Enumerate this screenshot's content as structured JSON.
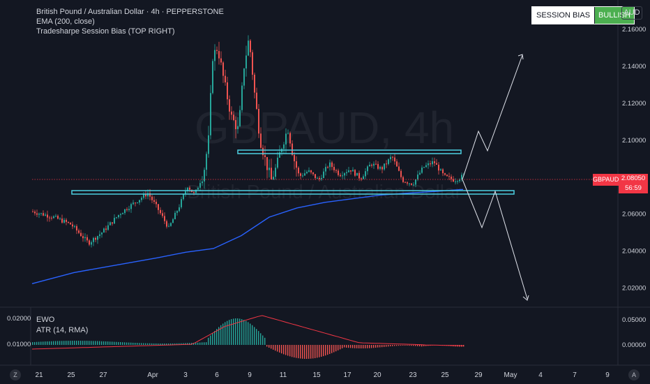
{
  "header": {
    "title": "British Pound / Australian Dollar · 4h · PEPPERSTONE",
    "ema": "EMA (200, close)",
    "bias_indicator": "Tradesharpe Session Bias (TOP RIGHT)"
  },
  "watermark": {
    "symbol": "GBPAUD, 4h",
    "name": "British Pound / Australian Dollar"
  },
  "session_bias": {
    "label": "SESSION BIAS",
    "value": "BULLISH",
    "value_color": "#4caf50"
  },
  "currency_button": "AUD",
  "price_axis": {
    "ticks": [
      "2.16000",
      "2.14000",
      "2.12000",
      "2.10000",
      "2.08000",
      "2.06000",
      "2.04000",
      "2.02000"
    ],
    "symbol_tag": "GBPAUD",
    "last_price": "2.08050",
    "countdown": "56:59"
  },
  "indicator_pane": {
    "names": [
      "EWO",
      "ATR (14, RMA)"
    ],
    "left_ticks": [
      "0.02000",
      "0.01000"
    ],
    "right_ticks": [
      "0.05000",
      "0.00000"
    ]
  },
  "time_axis": {
    "labels": [
      "21",
      "25",
      "27",
      "Apr",
      "3",
      "6",
      "9",
      "11",
      "15",
      "17",
      "20",
      "23",
      "25",
      "29",
      "May",
      "4",
      "7",
      "9"
    ]
  },
  "corners": {
    "left": "Z",
    "right": "A"
  },
  "colors": {
    "background": "#131722",
    "up_candle": "#26a69a",
    "down_candle": "#ef5350",
    "ema": "#2962ff",
    "zones": "#4dd0e1",
    "atr": "#f23645"
  },
  "chart_data": {
    "type": "candlestick",
    "symbol": "GBPAUD",
    "timeframe": "4h",
    "ylim": [
      2.01,
      2.168
    ],
    "last_price": 2.0805,
    "resistance_zone": 2.0965,
    "support_zone": 2.0735,
    "projection_up_targets": [
      2.107,
      2.152
    ],
    "projection_down_targets": [
      2.062,
      2.012
    ],
    "ema200": [
      [
        0,
        2.022
      ],
      [
        60,
        2.028
      ],
      [
        120,
        2.032
      ],
      [
        180,
        2.036
      ],
      [
        220,
        2.039
      ],
      [
        260,
        2.041
      ],
      [
        300,
        2.048
      ],
      [
        340,
        2.058
      ],
      [
        380,
        2.063
      ],
      [
        420,
        2.066
      ],
      [
        460,
        2.068
      ],
      [
        500,
        2.07
      ],
      [
        540,
        2.071
      ],
      [
        580,
        2.072
      ],
      [
        618,
        2.073
      ]
    ],
    "candles_close_path": [
      [
        0,
        2.061
      ],
      [
        30,
        2.058
      ],
      [
        55,
        2.054
      ],
      [
        80,
        2.044
      ],
      [
        100,
        2.05
      ],
      [
        125,
        2.06
      ],
      [
        150,
        2.067
      ],
      [
        165,
        2.071
      ],
      [
        180,
        2.062
      ],
      [
        195,
        2.052
      ],
      [
        210,
        2.064
      ],
      [
        222,
        2.075
      ],
      [
        232,
        2.07
      ],
      [
        245,
        2.082
      ],
      [
        252,
        2.1
      ],
      [
        258,
        2.145
      ],
      [
        265,
        2.15
      ],
      [
        275,
        2.13
      ],
      [
        285,
        2.112
      ],
      [
        295,
        2.105
      ],
      [
        303,
        2.14
      ],
      [
        310,
        2.155
      ],
      [
        318,
        2.125
      ],
      [
        326,
        2.1
      ],
      [
        334,
        2.088
      ],
      [
        342,
        2.078
      ],
      [
        350,
        2.086
      ],
      [
        358,
        2.098
      ],
      [
        366,
        2.106
      ],
      [
        374,
        2.09
      ],
      [
        382,
        2.08
      ],
      [
        395,
        2.083
      ],
      [
        410,
        2.078
      ],
      [
        425,
        2.087
      ],
      [
        440,
        2.081
      ],
      [
        455,
        2.084
      ],
      [
        470,
        2.079
      ],
      [
        485,
        2.087
      ],
      [
        500,
        2.084
      ],
      [
        515,
        2.091
      ],
      [
        530,
        2.078
      ],
      [
        545,
        2.076
      ],
      [
        560,
        2.085
      ],
      [
        575,
        2.088
      ],
      [
        590,
        2.08
      ],
      [
        605,
        2.078
      ],
      [
        618,
        2.0805
      ]
    ]
  }
}
